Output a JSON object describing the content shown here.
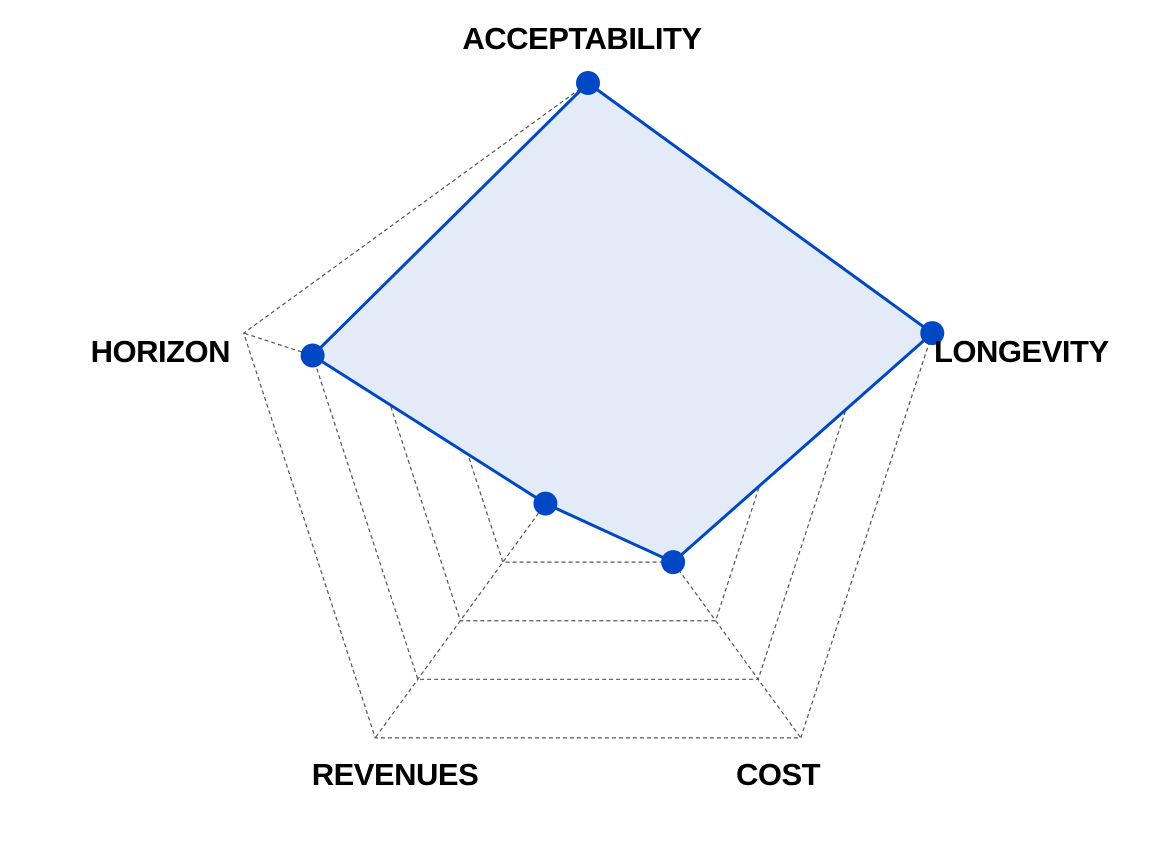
{
  "chart_data": {
    "type": "radar",
    "categories": [
      "ACCEPTABILITY",
      "LONGEVITY",
      "COST",
      "REVENUES",
      "HORIZON"
    ],
    "series": [
      {
        "values": [
          1.0,
          1.0,
          0.4,
          0.2,
          0.8
        ]
      }
    ],
    "range": [
      0,
      1
    ],
    "rings": 5,
    "grid": true,
    "grid_style": "dashed",
    "colors": {
      "line": "#0047c4",
      "fill": "#e3ebf8",
      "marker": "#0047c4",
      "grid": "#555555",
      "label": "#000000"
    }
  }
}
